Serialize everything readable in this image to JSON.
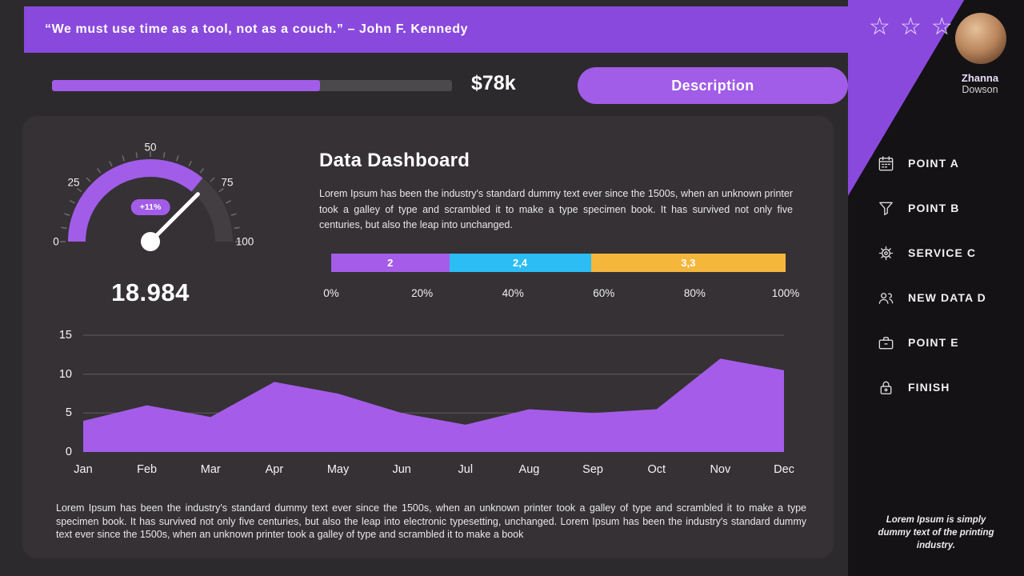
{
  "colors": {
    "accent": "#a15ce8",
    "accent_deep": "#8a49dd",
    "gauge_track": "#423e42",
    "progress_track": "#4c494c",
    "main_bg": "#2d2a2d",
    "card_bg": "#353135",
    "sidebar_bg": "#141214"
  },
  "header": {
    "quote": "“We must use time as a tool, not as a couch.” – John F. Kennedy"
  },
  "topbar": {
    "amount": "$78k",
    "progress_percent": 67,
    "button_label": "Description"
  },
  "dashboard": {
    "title": "Data Dashboard",
    "intro": "Lorem Ipsum has been the industry's standard dummy text ever since the 1500s, when an unknown printer took a galley of type and scrambled it to make a type specimen book. It has survived not only five centuries, but also the leap into unchanged.",
    "footer": "Lorem Ipsum has been the industry's standard dummy text ever since the 1500s, when an unknown printer took a galley of type and scrambled it to make a type specimen book. It has survived not only five centuries, but also the leap into electronic typesetting, unchanged. Lorem Ipsum has been the industry's standard dummy text ever since the 1500s, when an unknown printer took a galley of type and scrambled it to make a book"
  },
  "sidebar": {
    "stars": [
      "☆",
      "☆",
      "☆"
    ],
    "user": {
      "first_name": "Zhanna",
      "last_name": "Dowson"
    },
    "items": [
      {
        "label": "POINT A",
        "icon": "calendar-icon"
      },
      {
        "label": "POINT B",
        "icon": "funnel-icon"
      },
      {
        "label": "SERVICE C",
        "icon": "gear-icon"
      },
      {
        "label": "NEW DATA D",
        "icon": "users-icon"
      },
      {
        "label": "POINT E",
        "icon": "briefcase-icon"
      },
      {
        "label": "FINISH",
        "icon": "lock-icon"
      }
    ],
    "note": "Lorem Ipsum is simply dummy text of the printing industry."
  },
  "chart_data": [
    {
      "type": "gauge",
      "min": 0,
      "max": 100,
      "tick_labels": [
        "0",
        "25",
        "50",
        "75",
        "100"
      ],
      "fill_value": 72,
      "needle_value": 75,
      "badge": "+11%",
      "display_value": "18.984"
    },
    {
      "type": "stacked-bar",
      "segments": [
        {
          "label": "2",
          "value": 2,
          "color": "#a55ce8"
        },
        {
          "label": "2,4",
          "value": 2.4,
          "color": "#2bbdf4"
        },
        {
          "label": "3,3",
          "value": 3.3,
          "color": "#f5b63c"
        }
      ],
      "axis_ticks": [
        "0%",
        "20%",
        "40%",
        "60%",
        "80%",
        "100%"
      ]
    },
    {
      "type": "area",
      "categories": [
        "Jan",
        "Feb",
        "Mar",
        "Apr",
        "May",
        "Jun",
        "Jul",
        "Aug",
        "Sep",
        "Oct",
        "Nov",
        "Dec"
      ],
      "values": [
        4,
        6,
        4.5,
        9,
        7.5,
        5,
        3.5,
        5.5,
        5,
        5.5,
        12,
        10.5
      ],
      "ylim": [
        0,
        15
      ],
      "yticks": [
        0,
        5,
        10,
        15
      ],
      "grid": true,
      "legend": "none",
      "color": "#a55ce8"
    }
  ]
}
